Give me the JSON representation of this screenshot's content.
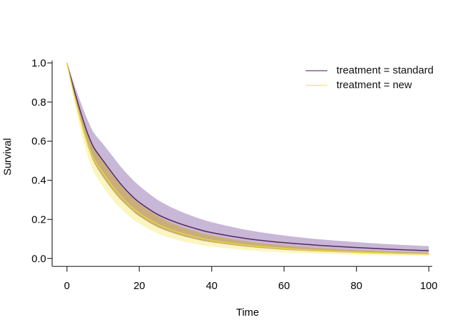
{
  "figure": {
    "background": "#ffffff",
    "axis_color": "#3a3a3a",
    "text_color": "#000000"
  },
  "chart_data": {
    "type": "line",
    "title": "",
    "xlabel": "Time",
    "ylabel": "Survival",
    "xlim": [
      0,
      100
    ],
    "ylim": [
      0.0,
      1.0
    ],
    "x_ticks": [
      "0",
      "20",
      "40",
      "60",
      "80",
      "100"
    ],
    "y_ticks": [
      "0.0",
      "0.2",
      "0.4",
      "0.6",
      "0.8",
      "1.0"
    ],
    "grid": false,
    "legend_position": "top-right",
    "band_overlap_color": "#c9ae7c",
    "x": [
      0,
      1,
      2,
      3,
      4,
      5,
      6,
      7.5,
      10,
      12.5,
      15,
      17.5,
      20,
      25,
      30,
      35,
      40,
      50,
      60,
      70,
      80,
      90,
      100
    ],
    "series": [
      {
        "name": "treatment = standard",
        "line_color": "#54275f",
        "band_color": "#c8b7d7",
        "legend_line_color": "#9d87ad",
        "values": [
          1.0,
          0.93,
          0.862,
          0.797,
          0.735,
          0.678,
          0.626,
          0.565,
          0.5,
          0.437,
          0.378,
          0.328,
          0.287,
          0.226,
          0.186,
          0.156,
          0.132,
          0.101,
          0.081,
          0.067,
          0.056,
          0.047,
          0.04
        ],
        "ci_upper": [
          1.0,
          0.946,
          0.89,
          0.838,
          0.788,
          0.74,
          0.696,
          0.641,
          0.585,
          0.526,
          0.467,
          0.416,
          0.372,
          0.301,
          0.252,
          0.215,
          0.186,
          0.145,
          0.118,
          0.098,
          0.084,
          0.072,
          0.063
        ],
        "ci_lower": [
          1.0,
          0.913,
          0.832,
          0.755,
          0.684,
          0.618,
          0.56,
          0.49,
          0.415,
          0.352,
          0.298,
          0.254,
          0.216,
          0.161,
          0.126,
          0.101,
          0.083,
          0.06,
          0.045,
          0.036,
          0.029,
          0.024,
          0.02
        ]
      },
      {
        "name": "treatment = new",
        "line_color": "#e9d636",
        "band_color": "#fbf6c1",
        "legend_line_color": "#f5efa0",
        "values": [
          1.0,
          0.916,
          0.837,
          0.763,
          0.692,
          0.627,
          0.571,
          0.507,
          0.436,
          0.371,
          0.316,
          0.269,
          0.231,
          0.176,
          0.139,
          0.113,
          0.093,
          0.068,
          0.052,
          0.041,
          0.033,
          0.027,
          0.022
        ],
        "ci_upper": [
          1.0,
          0.933,
          0.866,
          0.802,
          0.742,
          0.686,
          0.634,
          0.568,
          0.496,
          0.431,
          0.373,
          0.323,
          0.281,
          0.218,
          0.174,
          0.143,
          0.119,
          0.088,
          0.068,
          0.054,
          0.044,
          0.036,
          0.03
        ],
        "ci_lower": [
          1.0,
          0.897,
          0.802,
          0.717,
          0.64,
          0.57,
          0.51,
          0.44,
          0.366,
          0.304,
          0.253,
          0.211,
          0.178,
          0.129,
          0.097,
          0.076,
          0.061,
          0.042,
          0.031,
          0.024,
          0.019,
          0.015,
          0.012
        ]
      }
    ]
  }
}
